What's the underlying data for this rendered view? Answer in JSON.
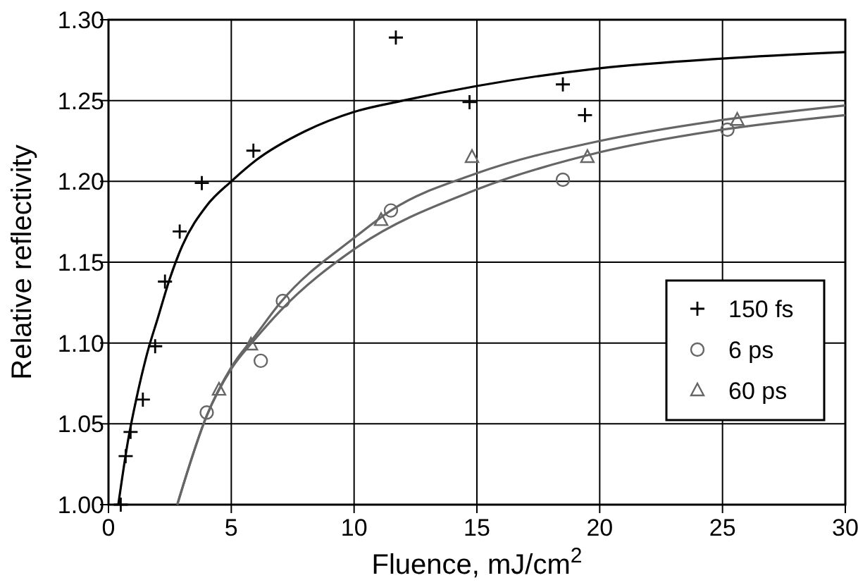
{
  "chart_data": {
    "type": "scatter",
    "xlabel": "Fluence, mJ/cm$^{2}$",
    "ylabel": "Relative reflectivity",
    "xlim": [
      0,
      30
    ],
    "xticks": [
      0,
      5,
      10,
      15,
      20,
      25,
      30
    ],
    "ylim": [
      1,
      1.3
    ],
    "yticks": [
      {
        "value": 1,
        "label": "1.00"
      },
      {
        "value": 1.05,
        "label": "1.05"
      },
      {
        "value": 1.1,
        "label": "1.10"
      },
      {
        "value": 1.15,
        "label": "1.15"
      },
      {
        "value": 1.2,
        "label": "1.20"
      },
      {
        "value": 1.25,
        "label": "1.25"
      },
      {
        "value": 1.3,
        "label": "1.30"
      }
    ],
    "grid": true,
    "legend": "bottom right",
    "series": [
      {
        "name": "150 fs",
        "color": "#000000",
        "marker": "cross",
        "x": [
          0.5,
          0.7,
          0.9,
          1.4,
          1.9,
          2.3,
          2.9,
          3.8,
          5.9,
          11.7,
          14.7,
          18.5,
          19.4
        ],
        "values": [
          1.0,
          1.03,
          1.045,
          1.065,
          1.098,
          1.138,
          1.169,
          1.199,
          1.219,
          1.289,
          1.249,
          1.26,
          1.241
        ]
      },
      {
        "name": "6 ps",
        "color": "#666666",
        "marker": "circle",
        "x": [
          4.0,
          6.2,
          7.1,
          11.5,
          18.5,
          25.2
        ],
        "values": [
          1.057,
          1.089,
          1.126,
          1.182,
          1.201,
          1.232
        ]
      },
      {
        "name": "60 ps",
        "color": "#666666",
        "marker": "triangle",
        "x": [
          4.5,
          5.8,
          11.1,
          14.8,
          19.5,
          25.6
        ],
        "values": [
          1.071,
          1.099,
          1.176,
          1.215,
          1.215,
          1.238
        ]
      },
      {
        "type": "line",
        "color": "#000000",
        "marker": "none",
        "line_style": "solid",
        "x": [
          0.4,
          0.8,
          1.2,
          1.6,
          2,
          2.5,
          3,
          4,
          5,
          6,
          8,
          10,
          12,
          15,
          20,
          25,
          30
        ],
        "values": [
          1.0,
          1.04,
          1.07,
          1.095,
          1.115,
          1.14,
          1.16,
          1.185,
          1.2,
          1.213,
          1.231,
          1.243,
          1.25,
          1.259,
          1.27,
          1.276,
          1.28
        ]
      },
      {
        "type": "line",
        "color": "#666666",
        "marker": "none",
        "line_style": "solid",
        "x": [
          2.8,
          4,
          5,
          6,
          7,
          10,
          11.5,
          15,
          20,
          25,
          30
        ],
        "values": [
          1.0,
          1.055,
          1.085,
          1.105,
          1.125,
          1.165,
          1.182,
          1.205,
          1.225,
          1.238,
          1.247
        ]
      },
      {
        "type": "line",
        "color": "#666666",
        "marker": "none",
        "line_style": "solid",
        "x": [
          2.8,
          4,
          5,
          6,
          7,
          10,
          15,
          20,
          25,
          30
        ],
        "values": [
          1.0,
          1.055,
          1.084,
          1.103,
          1.12,
          1.158,
          1.195,
          1.218,
          1.232,
          1.241
        ]
      }
    ]
  }
}
